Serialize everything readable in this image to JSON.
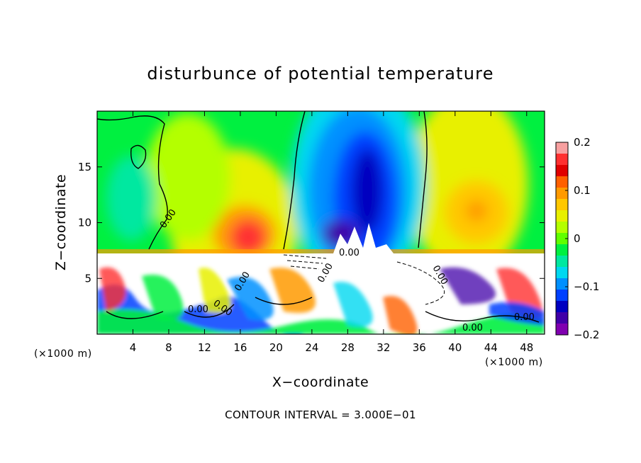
{
  "chart_data": {
    "type": "heatmap",
    "title": "disturbunce of potential temperature",
    "xlabel": "X−coordinate",
    "ylabel": "Z−coordinate",
    "x_unit": "(×1000 m)",
    "y_unit": "(×1000 m)",
    "xlim": [
      0,
      50
    ],
    "ylim": [
      0,
      20
    ],
    "xticks": [
      4,
      8,
      12,
      16,
      20,
      24,
      28,
      32,
      36,
      40,
      44,
      48
    ],
    "yticks": [
      5,
      10,
      15
    ],
    "colorbar": {
      "range": [
        -0.2,
        0.2
      ],
      "ticks": [
        0.2,
        0.1,
        0,
        -0.1,
        -0.2
      ],
      "tick_labels": [
        "0.2",
        "0.1",
        "0",
        "−0.1",
        "−0.2"
      ],
      "colors": [
        "#f8a0a0",
        "#ff3030",
        "#e00000",
        "#ff6000",
        "#ff9a00",
        "#ffc800",
        "#e8f000",
        "#b4ff00",
        "#60ff00",
        "#00f040",
        "#00e8a0",
        "#00d8f0",
        "#0090ff",
        "#0040ff",
        "#0000c0",
        "#4000a8",
        "#8000b0"
      ]
    },
    "contour_interval": "CONTOUR INTERVAL = 3.000E−01",
    "contour_labels": [
      "0.00",
      "0.00",
      "0.00",
      "0.00",
      "0.00",
      "0.00",
      "0.00",
      "0.00",
      "0.00"
    ]
  },
  "colors": {
    "background": "#ffffff",
    "frame": "#000000"
  }
}
